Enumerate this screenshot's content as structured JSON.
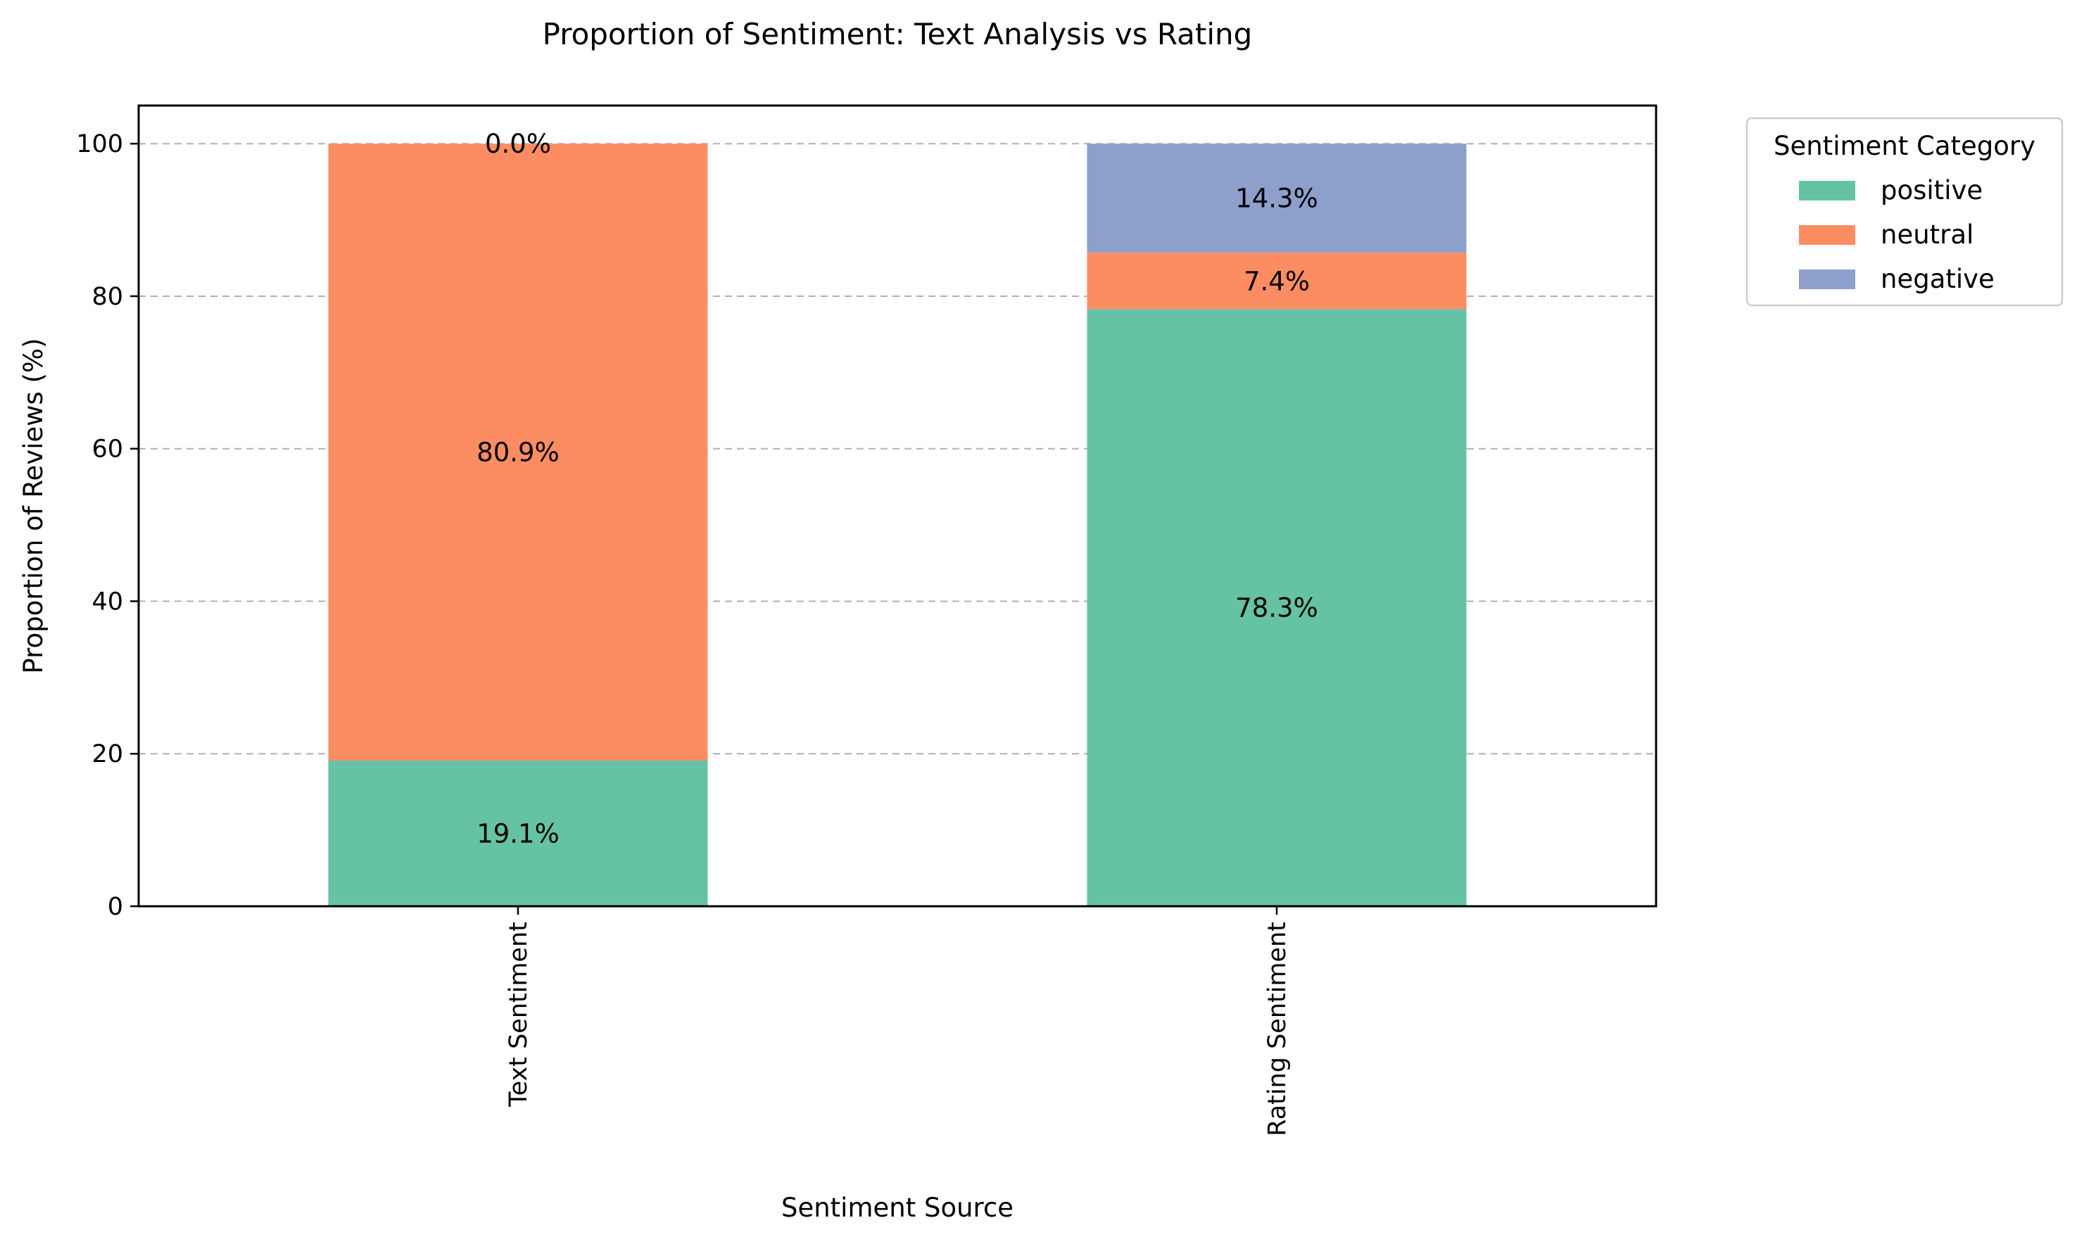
{
  "chart_data": {
    "type": "bar",
    "stacked": true,
    "title": "Proportion of Sentiment: Text Analysis vs Rating",
    "xlabel": "Sentiment Source",
    "ylabel": "Proportion of Reviews (%)",
    "categories": [
      "Text Sentiment",
      "Rating Sentiment"
    ],
    "ylim": [
      0,
      105
    ],
    "yticks": [
      "0",
      "20",
      "40",
      "60",
      "80",
      "100"
    ],
    "grid": "y, dashed",
    "legend": {
      "title": "Sentiment Category",
      "placement": "outside top-right"
    },
    "series": [
      {
        "name": "positive",
        "values": [
          19.1,
          78.3
        ],
        "labels": [
          "19.1%",
          "78.3%"
        ],
        "color": "#66c2a5"
      },
      {
        "name": "neutral",
        "values": [
          80.9,
          7.4
        ],
        "labels": [
          "80.9%",
          "7.4%"
        ],
        "color": "#fc8d62"
      },
      {
        "name": "negative",
        "values": [
          0.0,
          14.3
        ],
        "labels": [
          "0.0%",
          "14.3%"
        ],
        "color": "#8da0cb"
      }
    ]
  }
}
